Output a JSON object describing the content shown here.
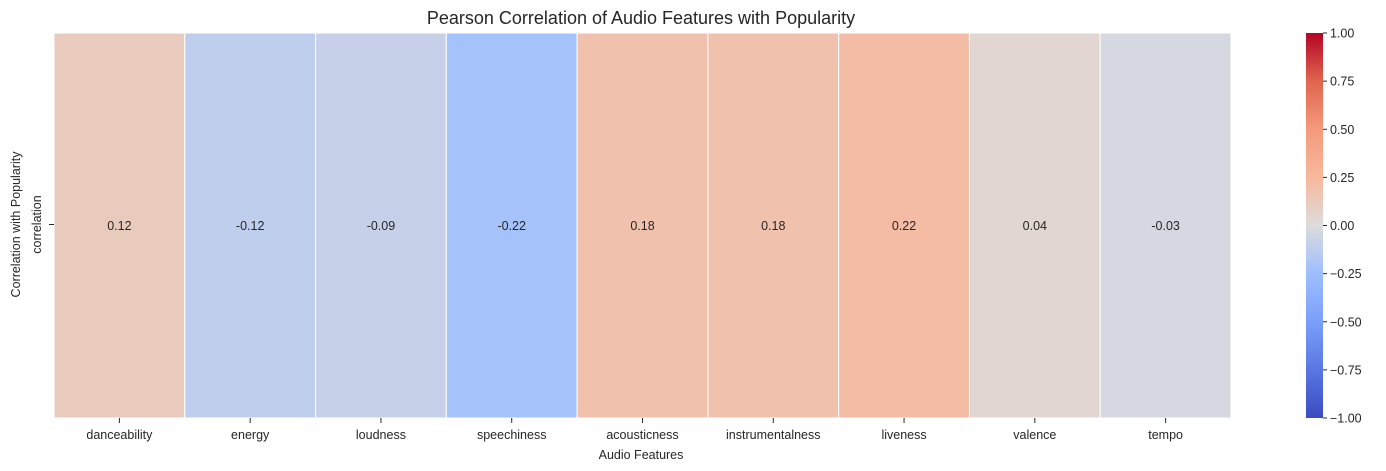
{
  "chart_data": {
    "type": "heatmap",
    "title": "Pearson Correlation of Audio Features with Popularity",
    "xlabel": "Audio Features",
    "ylabel": "Correlation with Popularity",
    "row_labels": [
      "correlation"
    ],
    "categories": [
      "danceability",
      "energy",
      "loudness",
      "speechiness",
      "acousticness",
      "instrumentalness",
      "liveness",
      "valence",
      "tempo"
    ],
    "values": [
      [
        0.12,
        -0.12,
        -0.09,
        -0.22,
        0.18,
        0.18,
        0.22,
        0.04,
        -0.03
      ]
    ],
    "annotations": [
      "0.12",
      "-0.12",
      "-0.09",
      "-0.22",
      "0.18",
      "0.18",
      "0.22",
      "0.04",
      "-0.03"
    ],
    "colormap": "coolwarm",
    "vmin": -1.0,
    "vmax": 1.0,
    "colorbar_ticks": [
      "1.00",
      "0.75",
      "0.50",
      "0.25",
      "0.00",
      "−0.25",
      "−0.50",
      "−0.75",
      "−1.00"
    ],
    "colorbar_tick_values": [
      1.0,
      0.75,
      0.5,
      0.25,
      0.0,
      -0.25,
      -0.5,
      -0.75,
      -1.0
    ],
    "grid": false,
    "legend": "colorbar-right"
  }
}
